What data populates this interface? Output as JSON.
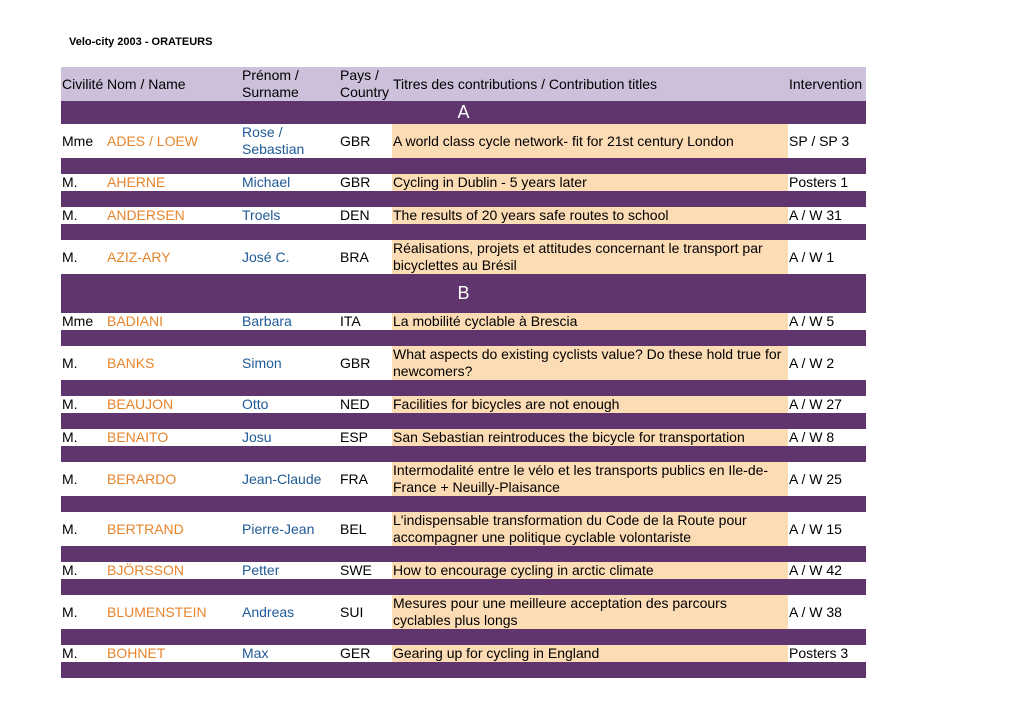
{
  "document": {
    "title": "Velo-city 2003 - ORATEURS"
  },
  "headers": {
    "civilite": "Civilité",
    "nom": "Nom / Name",
    "prenom": "Prénom / Surname",
    "pays": "Pays / Country",
    "titres": "Titres des contributions / Contribution titles",
    "intervention": "Intervention"
  },
  "sections": [
    {
      "letter": "A",
      "rows": [
        {
          "civ": "Mme",
          "nom": "ADES / LOEW",
          "prenom": "Rose / Sebastian",
          "pays": "GBR",
          "titre": "A world class cycle network- fit for 21st century London",
          "intervention": "SP / SP 3"
        },
        {
          "civ": "M.",
          "nom": "AHERNE",
          "prenom": "Michael",
          "pays": "GBR",
          "titre": "Cycling in Dublin - 5 years later",
          "intervention": "Posters 1"
        },
        {
          "civ": "M.",
          "nom": "ANDERSEN",
          "prenom": "Troels",
          "pays": "DEN",
          "titre": "The results of 20 years safe routes to school",
          "intervention": "A / W 31"
        },
        {
          "civ": "M.",
          "nom": "AZIZ-ARY",
          "prenom": "José C.",
          "pays": "BRA",
          "titre": "Réalisations, projets et attitudes concernant le transport par bicyclettes au Brésil",
          "intervention": "A / W 1"
        }
      ]
    },
    {
      "letter": "B",
      "rows": [
        {
          "civ": "Mme",
          "nom": "BADIANI",
          "prenom": "Barbara",
          "pays": "ITA",
          "titre": "La mobilité cyclable à Brescia",
          "intervention": "A / W 5"
        },
        {
          "civ": "M.",
          "nom": "BANKS",
          "prenom": "Simon",
          "pays": "GBR",
          "titre": "What aspects do existing cyclists value? Do these hold true for newcomers?",
          "intervention": "A / W 2"
        },
        {
          "civ": "M.",
          "nom": "BEAUJON",
          "prenom": "Otto",
          "pays": "NED",
          "titre": "Facilities for bicycles are not enough",
          "intervention": "A / W 27"
        },
        {
          "civ": "M.",
          "nom": "BENAITO",
          "prenom": "Josu",
          "pays": "ESP",
          "titre": "San Sebastian reintroduces the bicycle for transportation",
          "intervention": "A / W 8"
        },
        {
          "civ": "M.",
          "nom": "BERARDO",
          "prenom": "Jean-Claude",
          "pays": "FRA",
          "titre": "Intermodalité entre le vélo et les transports publics en Ile-de-France + Neuilly-Plaisance",
          "intervention": "A / W 25"
        },
        {
          "civ": "M.",
          "nom": "BERTRAND",
          "prenom": "Pierre-Jean",
          "pays": "BEL",
          "titre": "L'indispensable transformation du Code de la Route pour accompagner une politique cyclable volontariste",
          "intervention": "A / W 15"
        },
        {
          "civ": "M.",
          "nom": "BJÖRSSON",
          "prenom": "Petter",
          "pays": "SWE",
          "titre": "How to encourage cycling in arctic climate",
          "intervention": "A / W 42"
        },
        {
          "civ": "M.",
          "nom": "BLUMENSTEIN",
          "prenom": "Andreas",
          "pays": "SUI",
          "titre": "Mesures pour une meilleure acceptation des parcours cyclables plus longs",
          "intervention": "A / W 38"
        },
        {
          "civ": "M.",
          "nom": "BOHNET",
          "prenom": "Max",
          "pays": "GER",
          "titre": "Gearing up for cycling in England",
          "intervention": "Posters 3"
        }
      ]
    }
  ]
}
